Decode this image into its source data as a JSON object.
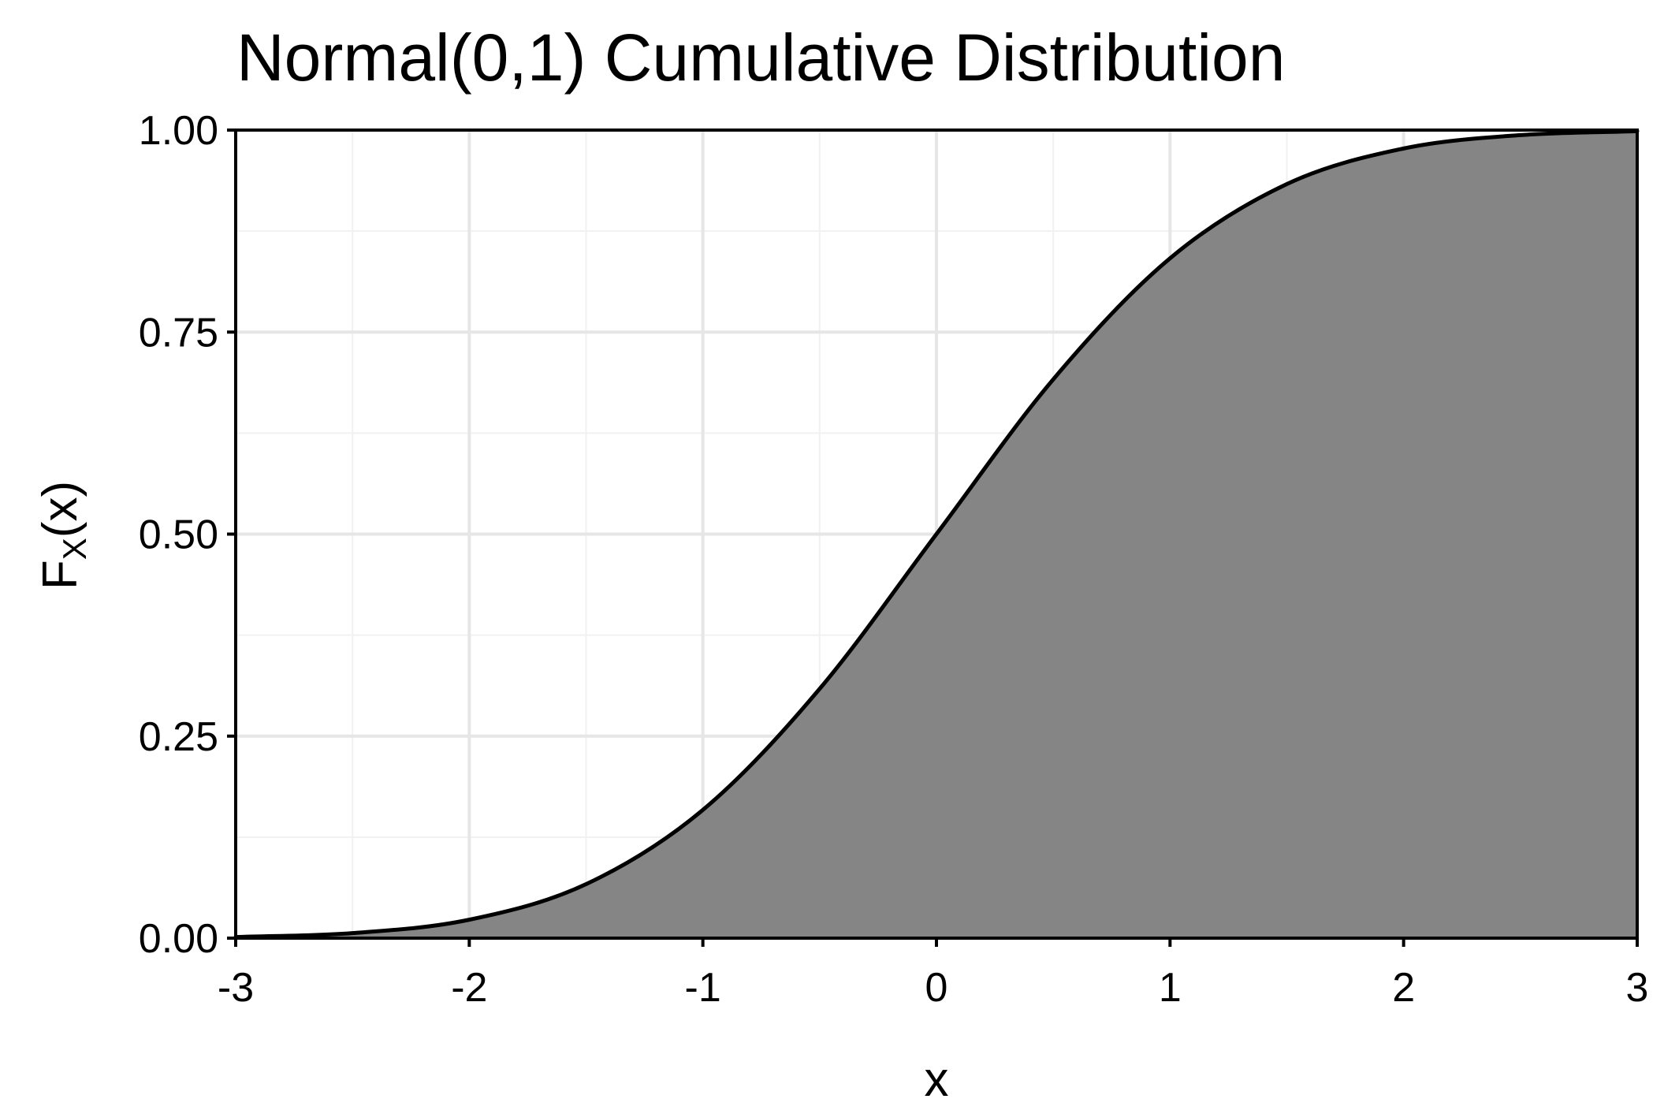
{
  "chart_data": {
    "type": "area",
    "title": "Normal(0,1) Cumulative Distribution",
    "xlabel": "x",
    "ylabel": {
      "base": "F",
      "subscript": "X",
      "suffix": "(x)"
    },
    "xlim": [
      -3,
      3
    ],
    "ylim": [
      0,
      1
    ],
    "x_ticks": [
      -3,
      -2,
      -1,
      0,
      1,
      2,
      3
    ],
    "x_tick_labels": [
      "-3",
      "-2",
      "-1",
      "0",
      "1",
      "2",
      "3"
    ],
    "y_ticks": [
      0,
      0.25,
      0.5,
      0.75,
      1
    ],
    "y_tick_labels": [
      "0.00",
      "0.25",
      "0.50",
      "0.75",
      "1.00"
    ],
    "grid": true,
    "legend": "none",
    "x": [
      -3.0,
      -2.5,
      -2.0,
      -1.5,
      -1.0,
      -0.5,
      0.0,
      0.5,
      1.0,
      1.5,
      2.0,
      2.5,
      3.0
    ],
    "y": [
      0.0013,
      0.0062,
      0.0228,
      0.0668,
      0.1587,
      0.3085,
      0.5,
      0.6915,
      0.8413,
      0.9332,
      0.9772,
      0.9938,
      0.9987
    ],
    "colors": {
      "fill": "#858585",
      "line": "#000000",
      "grid_major": "#e6e6e6",
      "grid_minor": "#f1f1f1",
      "panel_border": "#000000"
    }
  }
}
